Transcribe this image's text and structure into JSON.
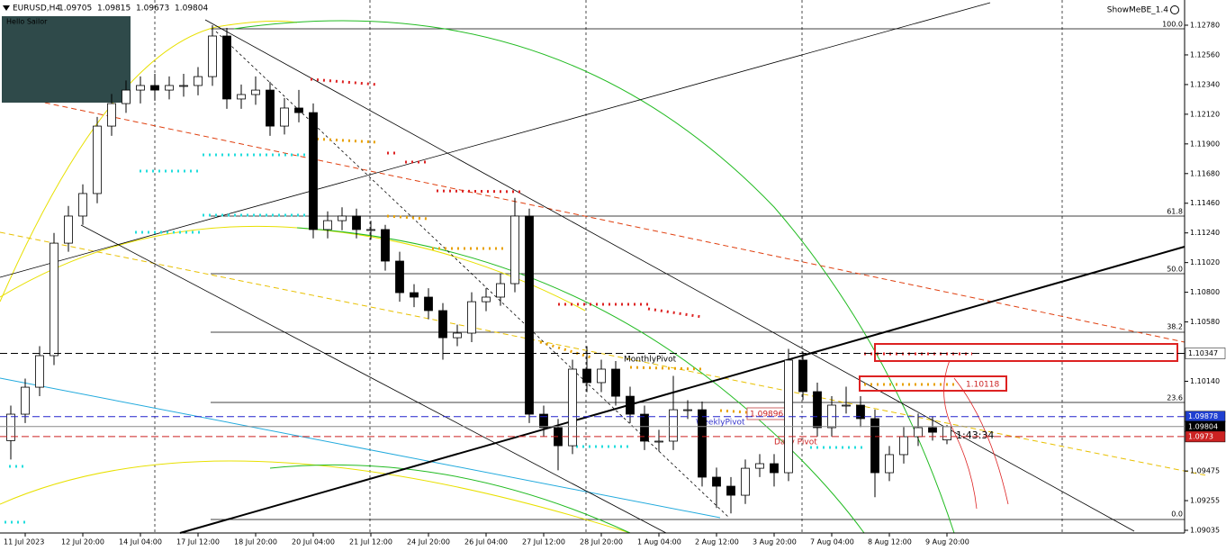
{
  "chart_data": {
    "type": "candlestick",
    "symbol": "EURUSD,H4",
    "indicator": "ShowMeBE_1.4",
    "panel_text": "Hello Sailor",
    "open": [
      1.097,
      1.09896,
      1.10096,
      1.1033,
      1.11164,
      1.11365,
      1.11532,
      1.12032,
      1.12199,
      1.12299,
      1.12333,
      1.12299,
      1.12333,
      1.12333,
      1.12399,
      1.127,
      1.12233,
      1.12266,
      1.12299,
      1.12032,
      1.12166,
      1.12132,
      1.11265,
      1.11331,
      1.11365,
      1.11265,
      1.11265,
      1.11031,
      1.10797,
      1.10764,
      1.10664,
      1.10463,
      1.10497,
      1.1073,
      1.10764,
      1.10864,
      1.11365,
      1.09896,
      1.09796,
      1.09662,
      1.1023,
      1.1013,
      1.1023,
      1.10029,
      1.09896,
      1.09696,
      1.09696,
      1.09929,
      1.09929,
      1.09429,
      1.09362,
      1.09295,
      1.09495,
      1.09529,
      1.09462,
      1.10297,
      1.10063,
      1.09796,
      1.09963,
      1.09963,
      1.09863,
      1.09462,
      1.09596,
      1.09729,
      1.09796,
      1.09705
    ],
    "high": [
      1.0996,
      1.1016,
      1.104,
      1.1124,
      1.1144,
      1.116,
      1.121,
      1.1227,
      1.1237,
      1.124,
      1.1242,
      1.124,
      1.1242,
      1.1247,
      1.1278,
      1.1276,
      1.1234,
      1.124,
      1.1236,
      1.1224,
      1.123,
      1.122,
      1.114,
      1.1143,
      1.1142,
      1.1133,
      1.113,
      1.111,
      1.1086,
      1.1083,
      1.1072,
      1.1056,
      1.108,
      1.1083,
      1.1094,
      1.115,
      1.1142,
      1.0996,
      1.0986,
      1.103,
      1.104,
      1.103,
      1.1029,
      1.101,
      1.0996,
      1.0978,
      1.1018,
      1.1,
      1.0999,
      1.095,
      1.0943,
      1.0956,
      1.096,
      1.096,
      1.1038,
      1.1036,
      1.1013,
      1.1003,
      1.101,
      1.1003,
      1.0993,
      1.0966,
      1.098,
      1.099,
      1.0988,
      1.09815
    ],
    "low": [
      1.0956,
      1.0983,
      1.1003,
      1.1026,
      1.111,
      1.113,
      1.1146,
      1.1196,
      1.1213,
      1.122,
      1.1222,
      1.1223,
      1.1225,
      1.1226,
      1.1233,
      1.1216,
      1.1216,
      1.1219,
      1.1196,
      1.1197,
      1.1206,
      1.112,
      1.112,
      1.1126,
      1.112,
      1.1119,
      1.1096,
      1.1073,
      1.1069,
      1.106,
      1.103,
      1.104,
      1.1043,
      1.1066,
      1.107,
      1.108,
      1.0983,
      1.0973,
      1.0948,
      1.096,
      1.1006,
      1.1006,
      1.0996,
      1.0983,
      1.0963,
      1.0962,
      1.0963,
      1.0986,
      1.0936,
      1.092,
      1.0916,
      1.0923,
      1.0943,
      1.0936,
      1.094,
      1.1,
      1.0973,
      1.0973,
      1.099,
      1.098,
      1.0928,
      1.094,
      1.0953,
      1.0966,
      1.097,
      1.09673
    ],
    "close": [
      1.09896,
      1.10096,
      1.1033,
      1.11164,
      1.11365,
      1.11532,
      1.12032,
      1.12199,
      1.12299,
      1.12333,
      1.12299,
      1.12333,
      1.12333,
      1.12399,
      1.127,
      1.12233,
      1.12266,
      1.12299,
      1.12032,
      1.12166,
      1.12132,
      1.11265,
      1.11331,
      1.11365,
      1.11265,
      1.11265,
      1.11031,
      1.10797,
      1.10764,
      1.10664,
      1.10463,
      1.10497,
      1.1073,
      1.10764,
      1.10864,
      1.11365,
      1.09896,
      1.09796,
      1.09662,
      1.1023,
      1.1013,
      1.1023,
      1.10029,
      1.09896,
      1.09696,
      1.09696,
      1.09929,
      1.09929,
      1.09429,
      1.09362,
      1.09295,
      1.09495,
      1.09529,
      1.09462,
      1.10297,
      1.10063,
      1.09796,
      1.09963,
      1.09963,
      1.09863,
      1.09462,
      1.09596,
      1.09729,
      1.09796,
      1.09762,
      1.09804
    ],
    "xlim": [
      -0.75,
      81.5
    ],
    "xticks": [
      {
        "value": 1,
        "label": "11 Jul 2023"
      },
      {
        "value": 5,
        "label": "12 Jul 20:00"
      },
      {
        "value": 9,
        "label": "14 Jul 04:00"
      },
      {
        "value": 13,
        "label": "17 Jul 12:00"
      },
      {
        "value": 17,
        "label": "18 Jul 20:00"
      },
      {
        "value": 21,
        "label": "20 Jul 04:00"
      },
      {
        "value": 25,
        "label": "21 Jul 12:00"
      },
      {
        "value": 29,
        "label": "24 Jul 20:00"
      },
      {
        "value": 33,
        "label": "26 Jul 04:00"
      },
      {
        "value": 37,
        "label": "27 Jul 12:00"
      },
      {
        "value": 41,
        "label": "28 Jul 20:00"
      },
      {
        "value": 45,
        "label": "1 Aug 04:00"
      },
      {
        "value": 49,
        "label": "2 Aug 12:00"
      },
      {
        "value": 53,
        "label": "3 Aug 20:00"
      },
      {
        "value": 57,
        "label": "7 Aug 04:00"
      },
      {
        "value": 61,
        "label": "8 Aug 12:00"
      },
      {
        "value": 65,
        "label": "9 Aug 20:00"
      }
    ],
    "ylim": [
      1.09015,
      1.12967
    ],
    "yticks": [
      {
        "value": 1.1278,
        "label": "1.12780"
      },
      {
        "value": 1.1256,
        "label": "1.12560"
      },
      {
        "value": 1.1234,
        "label": "1.12340"
      },
      {
        "value": 1.1212,
        "label": "1.12120"
      },
      {
        "value": 1.119,
        "label": "1.11900"
      },
      {
        "value": 1.1168,
        "label": "1.11680"
      },
      {
        "value": 1.1146,
        "label": "1.11460"
      },
      {
        "value": 1.1124,
        "label": "1.11240"
      },
      {
        "value": 1.1102,
        "label": "1.11020"
      },
      {
        "value": 1.108,
        "label": "1.10800"
      },
      {
        "value": 1.1058,
        "label": "1.10580"
      },
      {
        "value": 1.1014,
        "label": "1.10140"
      },
      {
        "value": 1.09475,
        "label": "1.09475"
      },
      {
        "value": 1.09255,
        "label": "1.09255"
      },
      {
        "value": 1.09035,
        "label": "1.09035"
      }
    ],
    "price_levels": [
      {
        "value": 1.10347,
        "color": "#000000",
        "tag_fill": "#ffffff",
        "tag_text": "#000000",
        "dash": true
      },
      {
        "value": 1.09878,
        "color": "#2222cc",
        "tag_fill": "#1f3fd0",
        "tag_text": "#ffffff",
        "dash": true
      },
      {
        "value": 1.09804,
        "color": "#888888",
        "tag_fill": "#000000",
        "tag_text": "#ffffff",
        "dash": false
      },
      {
        "value": 1.0973,
        "color": "#cc2222",
        "tag_fill": "#cc2222",
        "tag_text": "#ffffff",
        "dash": true
      }
    ],
    "fib_levels": [
      "100.0",
      "61.8",
      "50.0",
      "38.2",
      "23.6",
      "0.0"
    ],
    "pivot_labels": [
      "MonthlyPivot",
      "WeeklyPivot",
      "Daily Pivot"
    ],
    "marked_prices": [
      1.09896,
      1.10118
    ],
    "timer": "1:43:34",
    "bull_color": "#ffffff",
    "bear_color": "#000000"
  }
}
